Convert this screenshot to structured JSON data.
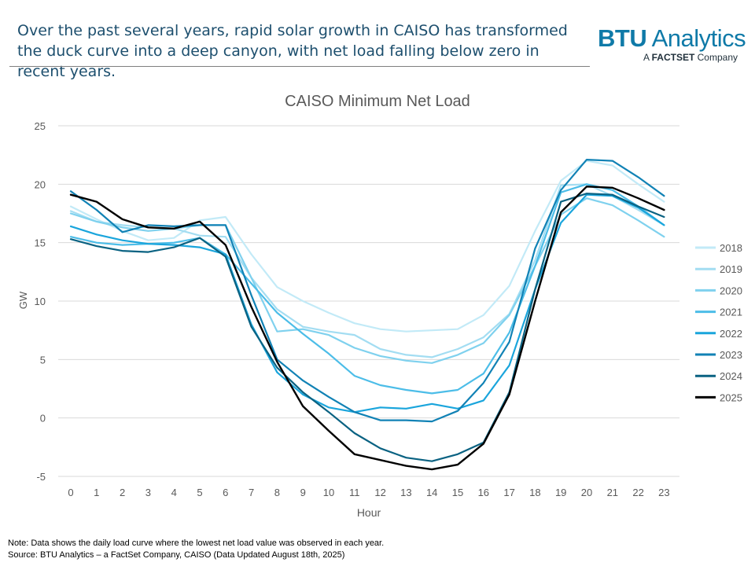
{
  "headline": "Over the past several years, rapid solar growth in CAISO has transformed the duck curve into a deep canyon, with net load falling below zero in recent years.",
  "logo": {
    "brand_bold": "BTU",
    "brand_rest": " Analytics",
    "sub_prefix": "A ",
    "sub_bold": "FACTSET",
    "sub_rest": " Company"
  },
  "footnotes": {
    "note": "Note: Data shows the daily load curve where the lowest net load value was observed in each year.",
    "source": "Source: BTU Analytics – a FactSet Company, CAISO (Data Updated August 18th, 2025)"
  },
  "colors": {
    "grid": "#d9d9d9",
    "axis_text": "#595959"
  },
  "chart_data": {
    "type": "line",
    "title": "CAISO Minimum Net Load",
    "xlabel": "Hour",
    "ylabel": "GW",
    "ylim": [
      -5,
      25
    ],
    "yticks": [
      -5,
      0,
      5,
      10,
      15,
      20,
      25
    ],
    "x": [
      0,
      1,
      2,
      3,
      4,
      5,
      6,
      7,
      8,
      9,
      10,
      11,
      12,
      13,
      14,
      15,
      16,
      17,
      18,
      19,
      20,
      21,
      22,
      23
    ],
    "legend_position": "right",
    "series": [
      {
        "name": "2018",
        "color": "#c2eaf7",
        "width": 2.2,
        "values": [
          18.1,
          17.0,
          16.0,
          15.2,
          15.4,
          16.9,
          17.2,
          14.0,
          11.2,
          10.0,
          9.0,
          8.1,
          7.6,
          7.4,
          7.5,
          7.6,
          8.8,
          11.3,
          16.0,
          20.3,
          22.0,
          21.6,
          20.0,
          18.5
        ]
      },
      {
        "name": "2019",
        "color": "#a3ddf2",
        "width": 2.2,
        "values": [
          17.7,
          16.8,
          16.5,
          16.3,
          16.2,
          15.6,
          15.5,
          12.0,
          9.3,
          7.8,
          7.4,
          7.1,
          5.9,
          5.4,
          5.2,
          5.9,
          6.9,
          8.9,
          13.5,
          19.9,
          20.0,
          19.0,
          17.8,
          16.5
        ]
      },
      {
        "name": "2020",
        "color": "#7fd1ee",
        "width": 2.2,
        "values": [
          17.5,
          16.8,
          16.3,
          16.0,
          16.2,
          16.5,
          16.5,
          12.0,
          7.4,
          7.6,
          7.1,
          6.0,
          5.3,
          4.9,
          4.7,
          5.4,
          6.4,
          8.8,
          13.0,
          17.4,
          18.8,
          18.2,
          16.9,
          15.5
        ]
      },
      {
        "name": "2021",
        "color": "#4cbde8",
        "width": 2.2,
        "values": [
          15.5,
          15.0,
          14.8,
          14.9,
          15.0,
          15.4,
          14.0,
          11.5,
          9.0,
          7.2,
          5.5,
          3.6,
          2.8,
          2.4,
          2.1,
          2.4,
          3.8,
          7.3,
          13.0,
          19.3,
          20.0,
          19.5,
          18.1,
          16.5
        ]
      },
      {
        "name": "2022",
        "color": "#1aa5dc",
        "width": 2.2,
        "values": [
          16.4,
          15.7,
          15.2,
          14.9,
          14.8,
          14.6,
          14.0,
          8.0,
          3.9,
          2.0,
          0.9,
          0.5,
          0.9,
          0.8,
          1.2,
          0.8,
          1.5,
          4.5,
          11.0,
          16.7,
          19.1,
          19.0,
          18.0,
          16.5
        ]
      },
      {
        "name": "2023",
        "color": "#1182b5",
        "width": 2.2,
        "values": [
          19.4,
          17.8,
          15.9,
          16.5,
          16.4,
          16.5,
          16.5,
          10.5,
          5.0,
          3.2,
          1.8,
          0.5,
          -0.2,
          -0.2,
          -0.3,
          0.6,
          3.0,
          6.5,
          14.5,
          19.5,
          22.1,
          22.0,
          20.6,
          19.0
        ]
      },
      {
        "name": "2024",
        "color": "#0a6282",
        "width": 2.2,
        "values": [
          15.3,
          14.7,
          14.3,
          14.2,
          14.6,
          15.4,
          13.8,
          7.8,
          4.3,
          2.2,
          0.5,
          -1.3,
          -2.6,
          -3.4,
          -3.7,
          -3.1,
          -2.1,
          2.2,
          11.0,
          18.5,
          19.2,
          19.1,
          18.1,
          17.2
        ]
      },
      {
        "name": "2025",
        "color": "#000000",
        "width": 2.4,
        "values": [
          19.1,
          18.5,
          17.0,
          16.3,
          16.2,
          16.8,
          14.8,
          9.5,
          4.8,
          1.0,
          -1.1,
          -3.1,
          -3.6,
          -4.1,
          -4.4,
          -4.0,
          -2.2,
          2.0,
          10.0,
          17.6,
          19.8,
          19.7,
          18.8,
          17.8
        ]
      }
    ]
  }
}
